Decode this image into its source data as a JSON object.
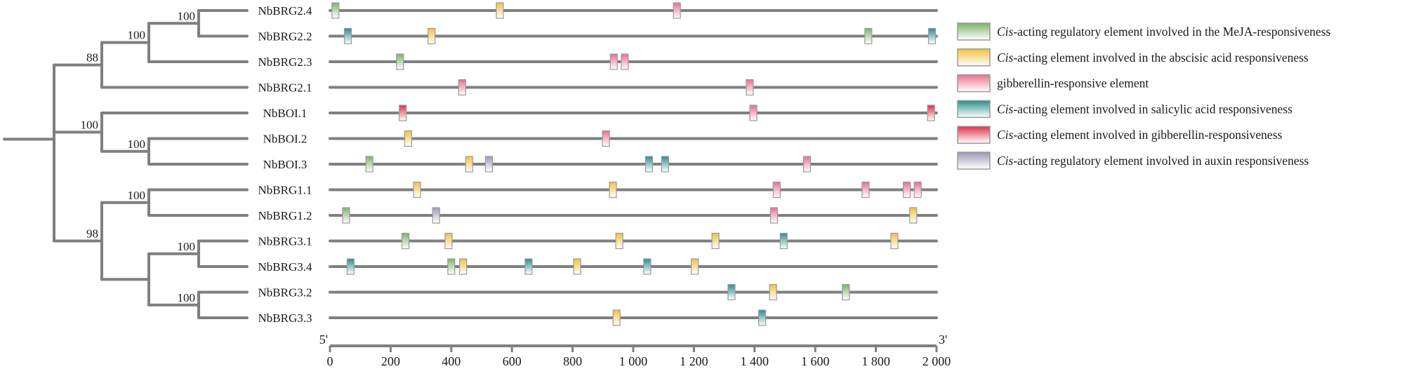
{
  "chart_data": {
    "type": "gene-structure-with-phylogeny",
    "xlim": [
      0,
      2000
    ],
    "x_ticks": [
      0,
      200,
      400,
      600,
      800,
      1000,
      1200,
      1400,
      1600,
      1800,
      2000
    ],
    "x_tick_labels": [
      "0",
      "200",
      "400",
      "600",
      "800",
      "1 000",
      "1 200",
      "1 400",
      "1 600",
      "1 800",
      "2 000"
    ],
    "axis_end_labels": {
      "start": "5'",
      "end": "3'"
    },
    "element_types": [
      {
        "key": "meja",
        "prefix": "Cis",
        "label": "-acting regulatory element involved in the MeJA-responsiveness",
        "color": "#7fb26a"
      },
      {
        "key": "aba",
        "prefix": "Cis",
        "label": "-acting element involved in the abscisic acid responsiveness",
        "color": "#f0c040"
      },
      {
        "key": "ga",
        "prefix": "",
        "label": "gibberellin-responsive element",
        "color": "#e8708e"
      },
      {
        "key": "sa",
        "prefix": "Cis",
        "label": "-acting element involved in salicylic acid responsiveness",
        "color": "#2a8f8a"
      },
      {
        "key": "ga2",
        "prefix": "Cis",
        "label": "-acting element involved in gibberellin-responsiveness",
        "color": "#e03048"
      },
      {
        "key": "auxin",
        "prefix": "Cis",
        "label": "-acting regulatory element involved in auxin responsiveness",
        "color": "#9a9ab8"
      }
    ],
    "genes": [
      {
        "name": "NbBRG2.4",
        "elements": [
          [
            "meja",
            18
          ],
          [
            "aba",
            560
          ],
          [
            "ga",
            1144
          ]
        ]
      },
      {
        "name": "NbBRG2.2",
        "elements": [
          [
            "sa",
            59
          ],
          [
            "aba",
            335
          ],
          [
            "meja",
            1775
          ],
          [
            "sa",
            1985
          ]
        ]
      },
      {
        "name": "NbBRG2.3",
        "elements": [
          [
            "meja",
            231
          ],
          [
            "ga",
            936
          ],
          [
            "ga",
            972
          ]
        ]
      },
      {
        "name": "NbBRG2.1",
        "elements": [
          [
            "ga",
            436
          ],
          [
            "ga",
            1384
          ]
        ]
      },
      {
        "name": "NbBOI.1",
        "elements": [
          [
            "ga2",
            240
          ],
          [
            "ga",
            1396
          ],
          [
            "ga2",
            1982
          ]
        ]
      },
      {
        "name": "NbBOI.2",
        "elements": [
          [
            "aba",
            258
          ],
          [
            "ga",
            910
          ]
        ]
      },
      {
        "name": "NbBOI.3",
        "elements": [
          [
            "meja",
            130
          ],
          [
            "aba",
            459
          ],
          [
            "auxin",
            524
          ],
          [
            "sa",
            1052
          ],
          [
            "sa",
            1105
          ],
          [
            "ga",
            1573
          ]
        ]
      },
      {
        "name": "NbBRG1.1",
        "elements": [
          [
            "aba",
            287
          ],
          [
            "aba",
            933
          ],
          [
            "ga",
            1473
          ],
          [
            "ga",
            1766
          ],
          [
            "ga",
            1902
          ],
          [
            "ga",
            1938
          ]
        ]
      },
      {
        "name": "NbBRG1.2",
        "elements": [
          [
            "meja",
            53
          ],
          [
            "auxin",
            350
          ],
          [
            "ga",
            1464
          ],
          [
            "aba",
            1923
          ]
        ]
      },
      {
        "name": "NbBRG3.1",
        "elements": [
          [
            "meja",
            249
          ],
          [
            "aba",
            391
          ],
          [
            "aba",
            954
          ],
          [
            "aba",
            1271
          ],
          [
            "sa",
            1496
          ],
          [
            "aba",
            1861
          ]
        ]
      },
      {
        "name": "NbBRG3.4",
        "elements": [
          [
            "sa",
            68
          ],
          [
            "meja",
            400
          ],
          [
            "aba",
            439
          ],
          [
            "sa",
            655
          ],
          [
            "aba",
            815
          ],
          [
            "sa",
            1046
          ],
          [
            "aba",
            1203
          ]
        ]
      },
      {
        "name": "NbBRG3.2",
        "elements": [
          [
            "sa",
            1324
          ],
          [
            "aba",
            1461
          ],
          [
            "meja",
            1701
          ]
        ]
      },
      {
        "name": "NbBRG3.3",
        "elements": [
          [
            "aba",
            945
          ],
          [
            "sa",
            1425
          ]
        ]
      }
    ],
    "bootstrap_values": [
      "100",
      "100",
      "88",
      "100",
      "100",
      "98",
      "100",
      "100",
      "100"
    ]
  },
  "colors": {
    "line": "#7f7f80",
    "box_border": "#9a9a9a"
  }
}
